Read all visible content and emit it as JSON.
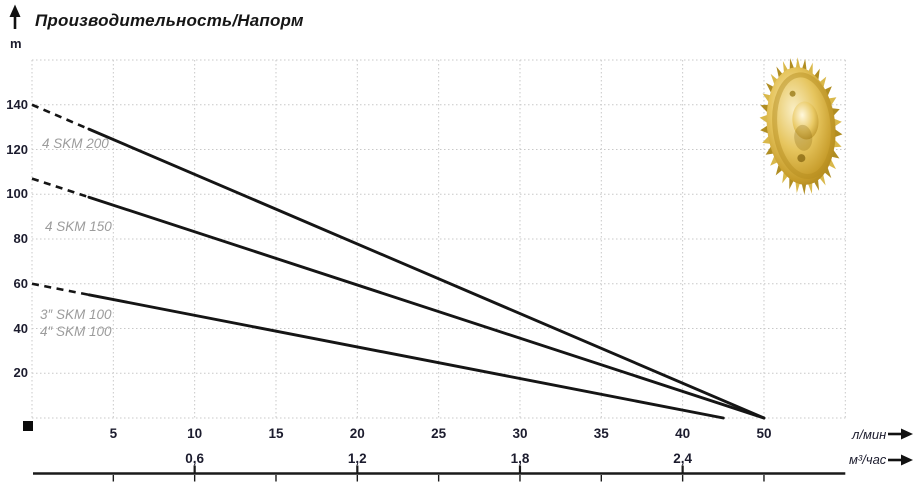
{
  "title": "Производительность/Напорм",
  "y_axis": {
    "unit_label": "m",
    "tick_labels": [
      "140",
      "120",
      "100",
      "80",
      "60",
      "40",
      "20"
    ]
  },
  "x_axis_primary": {
    "unit_label": "л/мин",
    "tick_labels": [
      "5",
      "10",
      "15",
      "20",
      "25",
      "30",
      "35",
      "40",
      "50"
    ]
  },
  "x_axis_secondary": {
    "unit_label": "м³/час",
    "ticks": [
      {
        "label": "0,6",
        "grid_index": 2
      },
      {
        "label": "1,2",
        "grid_index": 4
      },
      {
        "label": "1,8",
        "grid_index": 6
      },
      {
        "label": "2,4",
        "grid_index": 8
      }
    ]
  },
  "curve_labels": [
    "4 SKM 200",
    "4 SKM 150",
    "3″ SKM 100",
    "4″ SKM 100"
  ],
  "icons": {
    "up_arrow": "arrow-up-icon",
    "right_arrow": "arrow-right-icon",
    "impeller": "brass-pump-impeller"
  },
  "colors": {
    "curve": "#151515",
    "grid": "#c8c8c8",
    "tick_text": "#1c1c2e",
    "series_label": "#9c9c9c",
    "axis_line": "#1a1a1a",
    "impeller_gold": "#d4af37"
  },
  "chart_data": {
    "type": "line",
    "title": "Производительность/Напорм",
    "x_unit": "л/мин",
    "x_unit_secondary": "м³/час",
    "y_unit": "m",
    "x_ticks": [
      5,
      10,
      15,
      20,
      25,
      30,
      35,
      40,
      50
    ],
    "x_ticks_secondary": [
      0.6,
      1.2,
      1.8,
      2.4
    ],
    "y_ticks": [
      20,
      40,
      60,
      80,
      100,
      120,
      140
    ],
    "ylim": [
      0,
      160
    ],
    "grid": "dotted",
    "legend_position": "none",
    "series": [
      {
        "name": "4 SKM 200",
        "points": [
          [
            0,
            140
          ],
          [
            50,
            0
          ]
        ],
        "dashed_until_x": 3.5
      },
      {
        "name": "4 SKM 150",
        "points": [
          [
            0,
            107
          ],
          [
            50,
            0
          ]
        ],
        "dashed_until_x": 3.5
      },
      {
        "name": "3″/4″ SKM 100",
        "points": [
          [
            0,
            60
          ],
          [
            45,
            0
          ]
        ],
        "dashed_until_x": 3.5
      }
    ]
  }
}
